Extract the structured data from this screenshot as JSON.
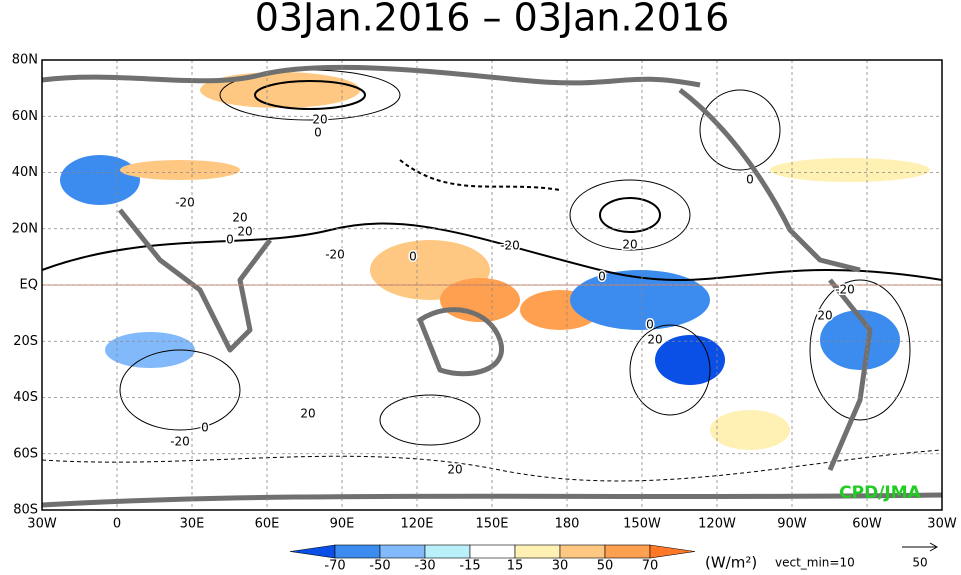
{
  "title": "03Jan.2016 – 03Jan.2016",
  "map": {
    "lat_labels": [
      "80N",
      "60N",
      "40N",
      "20N",
      "EQ",
      "20S",
      "40S",
      "60S",
      "80S"
    ],
    "lon_labels": [
      "30W",
      "0",
      "30E",
      "60E",
      "90E",
      "120E",
      "150E",
      "180",
      "150W",
      "120W",
      "90W",
      "60W",
      "30W"
    ],
    "contour_labels": [
      "20",
      "0",
      "-20",
      "20",
      "0",
      "20",
      "-20",
      "0",
      "0",
      "20",
      "-20",
      "0",
      "20",
      "0",
      "-20",
      "20",
      "0",
      "-20",
      "20",
      "20"
    ],
    "credit": "CPD/JMA"
  },
  "colorbar": {
    "levels": [
      -70,
      -50,
      -30,
      -15,
      15,
      30,
      50,
      70
    ],
    "colors": [
      "#0a50e6",
      "#3c8cf0",
      "#82b9fa",
      "#b9f0fa",
      "#ffffff",
      "#fff0b4",
      "#ffc882",
      "#ffa050",
      "#ff7828"
    ],
    "unit": "(W/m²)"
  },
  "vector_note": "vect_min=10",
  "vector_reference": "50"
}
